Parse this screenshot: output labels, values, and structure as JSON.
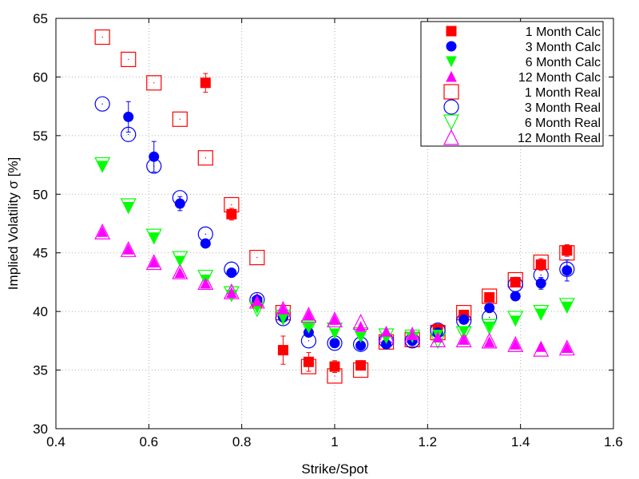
{
  "chart_data": {
    "type": "scatter",
    "title": "",
    "xlabel": "Strike/Spot",
    "ylabel": "Implied Volatility σ [%]",
    "xlim": [
      0.4,
      1.6
    ],
    "ylim": [
      30,
      65
    ],
    "xticks": [
      "0.4",
      "0.6",
      "0.8",
      "1",
      "1.2",
      "1.4",
      "1.6"
    ],
    "yticks": [
      "30",
      "35",
      "40",
      "45",
      "50",
      "55",
      "60",
      "65"
    ],
    "grid": true,
    "legend_position": "top-right",
    "series": [
      {
        "name": "1 Month Calc",
        "marker": "square-filled",
        "color": "#ff0000",
        "x": [
          0.722,
          0.778,
          0.833,
          0.889,
          0.944,
          1.0,
          1.056,
          1.222,
          1.278,
          1.333,
          1.389,
          1.444,
          1.5
        ],
        "y": [
          59.5,
          48.3,
          40.8,
          36.7,
          35.7,
          35.3,
          35.4,
          38.5,
          39.7,
          41.2,
          42.5,
          44.0,
          45.2
        ],
        "err": [
          0.8,
          0.5,
          0.4,
          1.2,
          0.8,
          0.5,
          0.4,
          0.3,
          0.3,
          0.3,
          0.3,
          0.5,
          0.5
        ]
      },
      {
        "name": "3 Month Calc",
        "marker": "circle-filled",
        "color": "#0000ff",
        "x": [
          0.556,
          0.611,
          0.667,
          0.722,
          0.778,
          0.833,
          0.889,
          0.944,
          1.0,
          1.056,
          1.111,
          1.167,
          1.222,
          1.278,
          1.333,
          1.389,
          1.444,
          1.5
        ],
        "y": [
          56.6,
          53.2,
          49.2,
          45.8,
          43.3,
          41.0,
          39.5,
          38.2,
          37.3,
          37.1,
          37.2,
          37.5,
          38.2,
          39.3,
          40.3,
          41.3,
          42.4,
          43.5
        ],
        "err": [
          1.3,
          1.3,
          0.6,
          0.3,
          0.3,
          0.3,
          0.3,
          0.3,
          0.3,
          0.3,
          0.3,
          0.3,
          0.3,
          0.3,
          0.3,
          0.3,
          0.5,
          0.9
        ]
      },
      {
        "name": "6 Month Calc",
        "marker": "triangle-down-filled",
        "color": "#00ff00",
        "x": [
          0.5,
          0.556,
          0.611,
          0.667,
          0.722,
          0.778,
          0.833,
          0.889,
          0.944,
          1.0,
          1.056,
          1.111,
          1.167,
          1.222,
          1.278,
          1.333,
          1.389,
          1.444,
          1.5
        ],
        "y": [
          52.4,
          48.9,
          46.3,
          44.3,
          42.7,
          41.4,
          40.3,
          39.4,
          38.6,
          38.1,
          37.8,
          37.7,
          37.8,
          38.0,
          38.3,
          38.7,
          39.2,
          39.8,
          40.4
        ]
      },
      {
        "name": "12 Month Calc",
        "marker": "triangle-up-filled",
        "color": "#ff00ff",
        "x": [
          0.5,
          0.556,
          0.611,
          0.667,
          0.722,
          0.778,
          0.833,
          0.889,
          0.944,
          1.0,
          1.056,
          1.111,
          1.167,
          1.222,
          1.278,
          1.333,
          1.389,
          1.444,
          1.5
        ],
        "y": [
          46.8,
          45.3,
          44.2,
          43.3,
          42.4,
          41.6,
          40.9,
          40.2,
          39.7,
          39.3,
          38.7,
          38.3,
          38.0,
          37.8,
          37.6,
          37.4,
          37.2,
          37.0,
          36.9
        ]
      },
      {
        "name": "1 Month Real",
        "marker": "square-open",
        "color": "#ff0000",
        "x": [
          0.5,
          0.556,
          0.611,
          0.667,
          0.722,
          0.778,
          0.833,
          0.889,
          0.944,
          1.0,
          1.056,
          1.111,
          1.167,
          1.222,
          1.278,
          1.333,
          1.389,
          1.444,
          1.5
        ],
        "y": [
          63.4,
          61.5,
          59.5,
          56.4,
          53.1,
          49.1,
          44.6,
          39.9,
          35.3,
          34.5,
          35.0,
          37.4,
          37.6,
          38.2,
          39.9,
          41.3,
          42.7,
          44.2,
          45.0
        ]
      },
      {
        "name": "3 Month Real",
        "marker": "circle-open",
        "color": "#0000ff",
        "x": [
          0.5,
          0.556,
          0.611,
          0.667,
          0.722,
          0.778,
          0.833,
          0.889,
          0.944,
          1.0,
          1.056,
          1.111,
          1.167,
          1.222,
          1.278,
          1.333,
          1.389,
          1.444,
          1.5
        ],
        "y": [
          57.7,
          55.1,
          52.4,
          49.7,
          46.6,
          43.6,
          41.0,
          39.4,
          37.5,
          37.3,
          37.2,
          37.5,
          37.5,
          38.4,
          39.2,
          39.5,
          42.3,
          43.1,
          43.6
        ]
      },
      {
        "name": "6 Month Real",
        "marker": "triangle-down-open",
        "color": "#00ff00",
        "x": [
          0.5,
          0.556,
          0.611,
          0.667,
          0.722,
          0.778,
          0.833,
          0.889,
          0.944,
          1.0,
          1.056,
          1.111,
          1.167,
          1.222,
          1.278,
          1.333,
          1.389,
          1.444,
          1.5
        ],
        "y": [
          52.5,
          49.0,
          46.4,
          44.5,
          42.9,
          41.5,
          40.2,
          39.5,
          38.6,
          38.4,
          38.0,
          37.9,
          37.8,
          37.5,
          38.1,
          38.7,
          39.4,
          39.9,
          40.5
        ]
      },
      {
        "name": "12 Month Real",
        "marker": "triangle-up-open",
        "color": "#ff00ff",
        "x": [
          0.5,
          0.556,
          0.611,
          0.667,
          0.722,
          0.778,
          0.833,
          0.889,
          0.944,
          1.0,
          1.056,
          1.111,
          1.167,
          1.222,
          1.278,
          1.333,
          1.389,
          1.444,
          1.5
        ],
        "y": [
          46.8,
          45.3,
          44.2,
          43.4,
          42.5,
          41.7,
          40.9,
          40.2,
          39.7,
          39.3,
          39.1,
          38.0,
          38.0,
          37.6,
          37.6,
          37.5,
          37.2,
          36.8,
          36.9
        ]
      }
    ]
  }
}
